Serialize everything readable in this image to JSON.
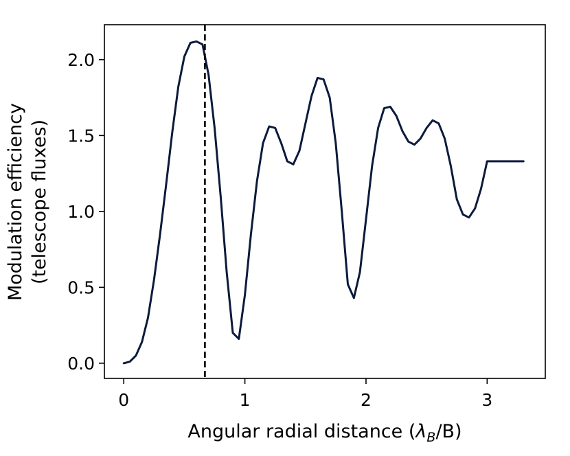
{
  "chart_data": {
    "type": "line",
    "title": "",
    "xlabel": "Angular radial distance (",
    "xlabel_symbol": "λ",
    "xlabel_subscript": "B",
    "xlabel_tail": "/B)",
    "ylabel_line1": "Modulation efficiency",
    "ylabel_line2": "(telescope fluxes)",
    "xlim": [
      -0.16,
      3.48
    ],
    "ylim": [
      -0.1,
      2.23
    ],
    "xticks": [
      0,
      1,
      2,
      3
    ],
    "xtick_labels": [
      "0",
      "1",
      "2",
      "3"
    ],
    "yticks": [
      0.0,
      0.5,
      1.0,
      1.5,
      2.0
    ],
    "ytick_labels": [
      "0.0",
      "0.5",
      "1.0",
      "1.5",
      "2.0"
    ],
    "grid": false,
    "vline": {
      "x": 0.67,
      "style": "dashed",
      "color": "#000000"
    },
    "series": [
      {
        "color": "#0c1a3c",
        "x": [
          0,
          0.05,
          0.1,
          0.15,
          0.2,
          0.25,
          0.3,
          0.35,
          0.4,
          0.45,
          0.5,
          0.55,
          0.6,
          0.65,
          0.7,
          0.75,
          0.8,
          0.85,
          0.9,
          0.95,
          1.0,
          1.05,
          1.1,
          1.15,
          1.2,
          1.25,
          1.3,
          1.35,
          1.4,
          1.45,
          1.5,
          1.55,
          1.6,
          1.65,
          1.7,
          1.75,
          1.8,
          1.85,
          1.9,
          1.95,
          2.0,
          2.05,
          2.1,
          2.15,
          2.2,
          2.25,
          2.3,
          2.35,
          2.4,
          2.45,
          2.5,
          2.55,
          2.6,
          2.65,
          2.7,
          2.75,
          2.8,
          2.85,
          2.9,
          2.95,
          3.0,
          3.05,
          3.1,
          3.15,
          3.2,
          3.25,
          3.3
        ],
        "y": [
          0.0,
          0.01,
          0.05,
          0.14,
          0.3,
          0.55,
          0.85,
          1.18,
          1.52,
          1.82,
          2.02,
          2.11,
          2.12,
          2.1,
          1.9,
          1.55,
          1.1,
          0.6,
          0.2,
          0.16,
          0.45,
          0.85,
          1.2,
          1.45,
          1.56,
          1.55,
          1.45,
          1.33,
          1.31,
          1.4,
          1.58,
          1.76,
          1.88,
          1.87,
          1.75,
          1.45,
          1.0,
          0.52,
          0.43,
          0.6,
          0.95,
          1.3,
          1.55,
          1.68,
          1.69,
          1.63,
          1.53,
          1.46,
          1.44,
          1.48,
          1.55,
          1.6,
          1.58,
          1.48,
          1.3,
          1.08,
          0.98,
          0.96,
          1.02,
          1.15,
          1.33,
          1.33,
          1.33,
          1.33,
          1.33,
          1.33,
          1.33
        ]
      }
    ]
  }
}
